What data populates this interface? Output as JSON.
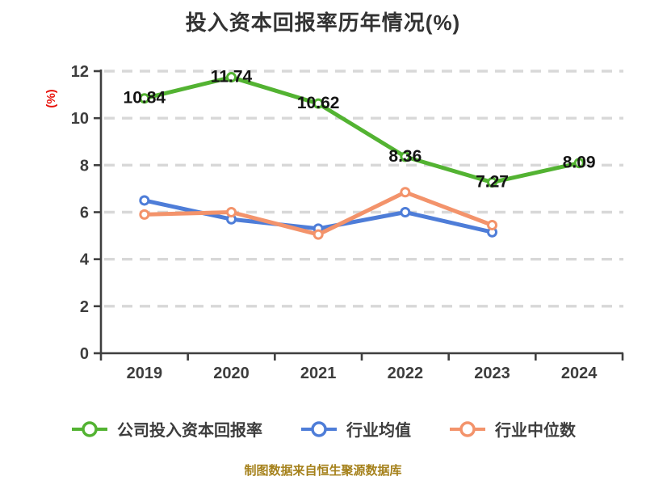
{
  "chart_data": {
    "type": "line",
    "title": "投入资本回报率历年情况(%)",
    "ylabel": "(%)",
    "xlabel": "",
    "categories": [
      "2019",
      "2020",
      "2021",
      "2022",
      "2023",
      "2024"
    ],
    "series": [
      {
        "name": "公司投入资本回报率",
        "color": "#53b332",
        "values": [
          10.84,
          11.74,
          10.62,
          8.36,
          7.27,
          8.09
        ],
        "data_labels": [
          "10.84",
          "11.74",
          "10.62",
          "8.36",
          "7.27",
          "8.09"
        ]
      },
      {
        "name": "行业均值",
        "color": "#4e7dd8",
        "values": [
          6.5,
          5.7,
          5.3,
          6.0,
          5.15,
          null
        ],
        "data_labels": null
      },
      {
        "name": "行业中位数",
        "color": "#f3936b",
        "values": [
          5.9,
          6.0,
          5.05,
          6.85,
          5.45,
          null
        ],
        "data_labels": null
      }
    ],
    "ylim": [
      0,
      12
    ],
    "yticks": [
      0,
      2,
      4,
      6,
      8,
      10,
      12
    ],
    "grid": "horizontal-dashed",
    "legend_position": "bottom"
  },
  "colors": {
    "grid": "#d8d8d8",
    "axis": "#3f3f3f",
    "ylabel_red": "#e8130c",
    "footer_text": "#a5811b"
  },
  "footer": "制图数据来自恒生聚源数据库"
}
